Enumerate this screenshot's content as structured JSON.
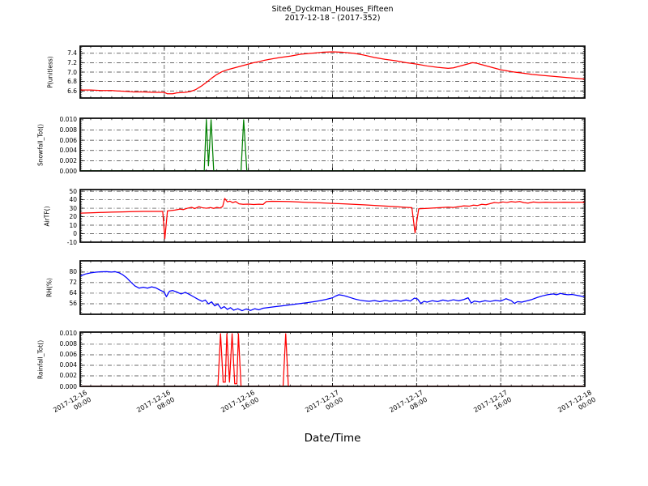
{
  "figure": {
    "title_line1": "Site6_Dyckman_Houses_Fifteen",
    "title_line2": "2017-12-18 - (2017-352)",
    "xlabel": "Date/Time",
    "background": "#ffffff",
    "frame_color": "#000000",
    "grid_color": "#3a3a3a"
  },
  "x_axis": {
    "range_hours": [
      0,
      48
    ],
    "major_tick_hours": [
      0,
      8,
      16,
      24,
      32,
      40,
      48
    ],
    "tick_labels": [
      [
        "2017-12-16",
        "00:00"
      ],
      [
        "2017-12-16",
        "08:00"
      ],
      [
        "2017-12-16",
        "16:00"
      ],
      [
        "2017-12-17",
        "00:00"
      ],
      [
        "2017-12-17",
        "08:00"
      ],
      [
        "2017-12-17",
        "16:00"
      ],
      [
        "2017-12-18",
        "00:00"
      ]
    ],
    "minor_step_hours": 1
  },
  "chart_data": [
    {
      "type": "line",
      "name": "P(unitless)",
      "ylabel": "P(unitless)",
      "color": "#ff0000",
      "ylim": [
        6.45,
        7.55
      ],
      "yticks": [
        6.6,
        6.8,
        7.0,
        7.2,
        7.4
      ],
      "ytick_labels": [
        "6.6",
        "6.8",
        "7.0",
        "7.2",
        "7.4"
      ],
      "y_minor_step": 0.04,
      "hours": [
        0,
        1,
        2,
        3,
        3.5,
        4.5,
        5,
        6,
        7,
        8,
        8.3,
        8.8,
        9.2,
        10,
        10.5,
        11,
        11.5,
        12,
        12.5,
        13,
        13.5,
        14,
        14.5,
        15,
        15.5,
        16,
        16.5,
        17,
        17.5,
        18,
        19,
        20,
        21,
        22,
        23,
        24,
        25,
        26,
        27,
        28,
        29,
        30,
        31,
        32,
        33,
        34,
        34.5,
        35,
        35.5,
        36,
        36.5,
        37,
        37.3,
        37.7,
        38,
        38.5,
        39,
        39.5,
        40,
        41,
        42,
        43,
        44,
        45,
        46,
        47,
        48
      ],
      "values": [
        6.62,
        6.62,
        6.61,
        6.61,
        6.6,
        6.59,
        6.58,
        6.58,
        6.57,
        6.57,
        6.54,
        6.54,
        6.56,
        6.57,
        6.59,
        6.63,
        6.7,
        6.78,
        6.87,
        6.95,
        7.01,
        7.05,
        7.08,
        7.11,
        7.14,
        7.17,
        7.2,
        7.22,
        7.25,
        7.27,
        7.31,
        7.34,
        7.38,
        7.4,
        7.42,
        7.43,
        7.42,
        7.4,
        7.36,
        7.31,
        7.27,
        7.24,
        7.2,
        7.17,
        7.13,
        7.1,
        7.09,
        7.08,
        7.09,
        7.12,
        7.15,
        7.18,
        7.2,
        7.19,
        7.17,
        7.14,
        7.11,
        7.08,
        7.05,
        7.01,
        6.98,
        6.95,
        6.93,
        6.91,
        6.89,
        6.87,
        6.85
      ]
    },
    {
      "type": "line",
      "name": "Snowfall_Tot()",
      "ylabel": "Snowfall_Tot()",
      "color": "#008000",
      "ylim": [
        0,
        0.0103
      ],
      "yticks": [
        0,
        0.002,
        0.004,
        0.006,
        0.008,
        0.01
      ],
      "ytick_labels": [
        "0.000",
        "0.002",
        "0.004",
        "0.006",
        "0.008",
        "0.010"
      ],
      "y_minor_step": 0.0004,
      "hours": [
        0,
        11.8,
        12.0,
        12.2,
        12.45,
        12.7,
        15.3,
        15.55,
        15.85,
        48
      ],
      "values": [
        0,
        0,
        0.01,
        0.001,
        0.01,
        0,
        0,
        0.01,
        0,
        0
      ]
    },
    {
      "type": "line",
      "name": "AirTF()",
      "ylabel": "AirTF()",
      "color": "#ff0000",
      "ylim": [
        -10,
        52
      ],
      "yticks": [
        -10,
        0,
        10,
        20,
        30,
        40,
        50
      ],
      "ytick_labels": [
        "-10",
        "0",
        "10",
        "20",
        "30",
        "40",
        "50"
      ],
      "y_minor_step": 2,
      "hours": [
        0,
        1,
        2,
        3,
        4,
        5,
        6,
        7,
        7.85,
        8.05,
        8.3,
        9,
        9.5,
        9.8,
        10.2,
        10.6,
        10.9,
        11.3,
        11.6,
        12,
        12.4,
        12.7,
        13,
        13.3,
        13.55,
        13.75,
        14,
        14.25,
        14.5,
        14.8,
        15.1,
        15.5,
        16,
        16.5,
        17,
        17.4,
        17.7,
        18.2,
        19,
        20,
        21,
        22,
        23,
        24,
        25,
        26,
        27,
        28,
        29,
        30,
        31,
        31.55,
        31.85,
        32.2,
        33,
        34,
        35,
        35.5,
        36,
        36.5,
        37,
        37.4,
        37.8,
        38.2,
        38.6,
        39,
        39.4,
        39.8,
        40.2,
        40.6,
        41,
        41.4,
        41.8,
        42.2,
        42.6,
        43.1,
        43.6,
        44.2,
        45,
        46,
        47,
        48
      ],
      "values": [
        24.2,
        24.6,
        25,
        25.4,
        25.7,
        26,
        26.2,
        26.3,
        26.3,
        -6,
        26.8,
        27.8,
        29,
        28.4,
        30,
        31,
        29.6,
        31.8,
        30.6,
        30,
        30.8,
        29.8,
        31,
        30.2,
        32,
        41.5,
        37.5,
        38.3,
        36.6,
        37.8,
        35.2,
        34.6,
        34.8,
        34.4,
        34.7,
        34.5,
        37.8,
        38.2,
        38,
        37.8,
        37.2,
        36.7,
        36.2,
        35.7,
        35.2,
        34.6,
        34,
        33.3,
        32.6,
        31.8,
        31,
        30.7,
        1,
        29.3,
        29.8,
        30.5,
        31.3,
        30.9,
        31.8,
        32.8,
        32.4,
        33.6,
        33.2,
        34.6,
        34.1,
        35.4,
        36.7,
        36.2,
        37.4,
        36.8,
        37.8,
        37.2,
        37.9,
        36.6,
        36,
        37.3,
        36.8,
        37.1,
        36.9,
        37.1,
        37,
        37.1
      ]
    },
    {
      "type": "line",
      "name": "RH(%)",
      "ylabel": "RH(%)",
      "color": "#0000ff",
      "ylim": [
        48,
        88.5
      ],
      "yticks": [
        56,
        64,
        72,
        80
      ],
      "ytick_labels": [
        "56",
        "64",
        "72",
        "80"
      ],
      "y_minor_step": 1.6,
      "hours": [
        0,
        0.5,
        1,
        1.5,
        2,
        2.5,
        3,
        3.3,
        3.7,
        4,
        4.4,
        4.8,
        5.2,
        5.6,
        6,
        6.4,
        6.8,
        7.2,
        7.6,
        8,
        8.2,
        8.5,
        8.8,
        9.2,
        9.6,
        10,
        10.4,
        10.8,
        11.2,
        11.6,
        11.9,
        12.2,
        12.5,
        12.8,
        13.1,
        13.4,
        13.7,
        14,
        14.3,
        14.6,
        15,
        15.4,
        15.8,
        16.2,
        16.6,
        17,
        17.4,
        18,
        18.6,
        19.2,
        19.8,
        20.4,
        21,
        21.6,
        22.2,
        22.8,
        23.4,
        24,
        24.3,
        24.6,
        25,
        25.4,
        25.8,
        26.2,
        26.6,
        27,
        27.5,
        28,
        28.5,
        29,
        29.5,
        30,
        30.5,
        31,
        31.4,
        31.8,
        32.1,
        32.4,
        32.7,
        33,
        33.5,
        34,
        34.5,
        35,
        35.5,
        36,
        36.5,
        36.9,
        37.2,
        37.5,
        38,
        38.5,
        39,
        39.5,
        40,
        40.5,
        41,
        41.3,
        41.6,
        42,
        42.5,
        43,
        43.5,
        44,
        44.5,
        45,
        45.3,
        45.7,
        46,
        46.4,
        46.8,
        47.2,
        47.6,
        48
      ],
      "values": [
        77,
        78.5,
        79.4,
        79.9,
        80.2,
        80.3,
        80,
        80.3,
        79.4,
        78.2,
        75.8,
        72.5,
        69.5,
        67.8,
        68.5,
        67.8,
        68.8,
        68,
        66.3,
        64.8,
        61.3,
        65.5,
        66,
        64.8,
        63.4,
        64.6,
        63,
        61.2,
        59.4,
        57.8,
        58.8,
        55.9,
        57.4,
        54.4,
        55.7,
        52.4,
        53.8,
        51.7,
        53,
        51.1,
        52.2,
        50.7,
        52,
        50.9,
        52.2,
        51.4,
        52.6,
        53.2,
        53.8,
        54.4,
        55,
        55.6,
        56.2,
        56.8,
        57.5,
        58.3,
        59.3,
        60.5,
        61.8,
        62.8,
        62.3,
        61.4,
        60.4,
        59.4,
        58.7,
        58.2,
        57.8,
        58.4,
        57.6,
        58.5,
        57.8,
        58.6,
        57.9,
        58.8,
        58,
        60.3,
        59.5,
        56.2,
        57.8,
        57.2,
        58.3,
        57.6,
        58.8,
        58,
        59,
        58.2,
        59.2,
        60.5,
        56.5,
        58,
        57.3,
        58.3,
        57.7,
        58.5,
        58,
        59.8,
        58.3,
        56.2,
        57.6,
        57.2,
        58.2,
        59.3,
        60.8,
        62,
        62.9,
        63.4,
        62.8,
        63.8,
        63.2,
        62.8,
        63,
        62.4,
        61.8,
        61.2
      ]
    },
    {
      "type": "line",
      "name": "Rainfall_Tot()",
      "ylabel": "Rainfall_Tot()",
      "color": "#ff0000",
      "ylim": [
        0,
        0.0103
      ],
      "yticks": [
        0,
        0.002,
        0.004,
        0.006,
        0.008,
        0.01
      ],
      "ytick_labels": [
        "0.000",
        "0.002",
        "0.004",
        "0.006",
        "0.008",
        "0.010"
      ],
      "y_minor_step": 0.0004,
      "hours": [
        0,
        13.1,
        13.35,
        13.6,
        13.8,
        13.95,
        14.2,
        14.45,
        14.7,
        14.9,
        15.05,
        15.3,
        19.3,
        19.55,
        19.8,
        48
      ],
      "values": [
        0,
        0,
        0.01,
        0.0008,
        0.0008,
        0.01,
        0.0008,
        0.01,
        0.0005,
        0.0005,
        0.01,
        0,
        0,
        0.01,
        0,
        0
      ]
    }
  ]
}
